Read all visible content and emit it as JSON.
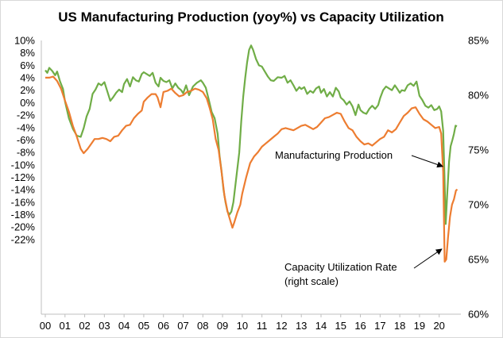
{
  "chart_data": {
    "type": "line",
    "title": "US Manufacturing Production (yoy%) vs Capacity Utilization",
    "x_ticks": [
      "00",
      "01",
      "02",
      "03",
      "04",
      "05",
      "06",
      "07",
      "08",
      "09",
      "10",
      "11",
      "12",
      "13",
      "14",
      "15",
      "16",
      "17",
      "18",
      "19",
      "20"
    ],
    "x_range": [
      2000.0,
      2020.9
    ],
    "left_axis": {
      "ticks": [
        "10%",
        "8%",
        "6%",
        "4%",
        "2%",
        "0%",
        "-2%",
        "-4%",
        "-6%",
        "-8%",
        "-10%",
        "-12%",
        "-14%",
        "-16%",
        "-18%",
        "-20%",
        "-22%"
      ],
      "range": [
        -34,
        10
      ]
    },
    "right_axis": {
      "ticks": [
        "85%",
        "80%",
        "75%",
        "70%",
        "65%",
        "60%"
      ],
      "range": [
        60,
        85
      ]
    },
    "grid": false,
    "series": [
      {
        "name": "Manufacturing Production",
        "axis": "left",
        "color": "#70ad47",
        "points": [
          [
            2000.0,
            5.2
          ],
          [
            2000.1,
            4.8
          ],
          [
            2000.2,
            5.6
          ],
          [
            2000.35,
            5.1
          ],
          [
            2000.5,
            4.4
          ],
          [
            2000.6,
            5.0
          ],
          [
            2000.75,
            3.4
          ],
          [
            2000.9,
            2.2
          ],
          [
            2001.0,
            0.2
          ],
          [
            2001.2,
            -2.5
          ],
          [
            2001.4,
            -4.2
          ],
          [
            2001.6,
            -5.3
          ],
          [
            2001.8,
            -5.5
          ],
          [
            2001.95,
            -4.1
          ],
          [
            2002.1,
            -2.2
          ],
          [
            2002.25,
            -1.0
          ],
          [
            2002.4,
            1.4
          ],
          [
            2002.55,
            2.1
          ],
          [
            2002.7,
            3.1
          ],
          [
            2002.85,
            2.8
          ],
          [
            2003.0,
            3.3
          ],
          [
            2003.15,
            1.8
          ],
          [
            2003.3,
            0.3
          ],
          [
            2003.45,
            0.9
          ],
          [
            2003.6,
            1.6
          ],
          [
            2003.75,
            2.1
          ],
          [
            2003.9,
            1.7
          ],
          [
            2004.0,
            3.0
          ],
          [
            2004.15,
            3.8
          ],
          [
            2004.3,
            2.6
          ],
          [
            2004.45,
            4.1
          ],
          [
            2004.6,
            3.6
          ],
          [
            2004.75,
            3.4
          ],
          [
            2004.9,
            4.6
          ],
          [
            2005.0,
            4.9
          ],
          [
            2005.15,
            4.6
          ],
          [
            2005.3,
            4.3
          ],
          [
            2005.45,
            4.8
          ],
          [
            2005.6,
            3.2
          ],
          [
            2005.75,
            2.6
          ],
          [
            2005.85,
            4.0
          ],
          [
            2006.0,
            3.5
          ],
          [
            2006.15,
            3.3
          ],
          [
            2006.3,
            3.6
          ],
          [
            2006.45,
            2.3
          ],
          [
            2006.6,
            3.1
          ],
          [
            2006.75,
            2.4
          ],
          [
            2006.9,
            2.0
          ],
          [
            2007.0,
            1.5
          ],
          [
            2007.15,
            2.8
          ],
          [
            2007.3,
            1.2
          ],
          [
            2007.5,
            2.6
          ],
          [
            2007.7,
            3.2
          ],
          [
            2007.9,
            3.6
          ],
          [
            2008.0,
            3.2
          ],
          [
            2008.15,
            2.4
          ],
          [
            2008.3,
            0.5
          ],
          [
            2008.45,
            -1.5
          ],
          [
            2008.6,
            -2.5
          ],
          [
            2008.75,
            -5.0
          ],
          [
            2008.85,
            -8.5
          ],
          [
            2008.95,
            -11.0
          ],
          [
            2009.05,
            -14.0
          ],
          [
            2009.15,
            -16.0
          ],
          [
            2009.25,
            -17.5
          ],
          [
            2009.35,
            -18.0
          ],
          [
            2009.45,
            -17.5
          ],
          [
            2009.55,
            -16.0
          ],
          [
            2009.7,
            -12.0
          ],
          [
            2009.85,
            -8.0
          ],
          [
            2009.95,
            -3.0
          ],
          [
            2010.05,
            1.0
          ],
          [
            2010.15,
            4.0
          ],
          [
            2010.25,
            6.5
          ],
          [
            2010.35,
            8.5
          ],
          [
            2010.45,
            9.2
          ],
          [
            2010.55,
            8.5
          ],
          [
            2010.7,
            7.0
          ],
          [
            2010.85,
            6.0
          ],
          [
            2011.0,
            5.8
          ],
          [
            2011.15,
            5.0
          ],
          [
            2011.3,
            4.2
          ],
          [
            2011.45,
            3.6
          ],
          [
            2011.6,
            3.5
          ],
          [
            2011.8,
            4.1
          ],
          [
            2012.0,
            4.0
          ],
          [
            2012.15,
            4.3
          ],
          [
            2012.3,
            3.2
          ],
          [
            2012.45,
            3.6
          ],
          [
            2012.6,
            2.8
          ],
          [
            2012.75,
            1.9
          ],
          [
            2012.9,
            2.5
          ],
          [
            2013.0,
            2.2
          ],
          [
            2013.15,
            2.5
          ],
          [
            2013.3,
            1.4
          ],
          [
            2013.45,
            1.9
          ],
          [
            2013.6,
            1.6
          ],
          [
            2013.75,
            2.3
          ],
          [
            2013.9,
            2.6
          ],
          [
            2014.0,
            1.6
          ],
          [
            2014.15,
            2.2
          ],
          [
            2014.3,
            1.0
          ],
          [
            2014.45,
            1.7
          ],
          [
            2014.6,
            1.0
          ],
          [
            2014.75,
            2.4
          ],
          [
            2014.9,
            1.8
          ],
          [
            2015.0,
            0.8
          ],
          [
            2015.15,
            0.4
          ],
          [
            2015.3,
            -0.3
          ],
          [
            2015.45,
            0.2
          ],
          [
            2015.6,
            -0.6
          ],
          [
            2015.75,
            -2.0
          ],
          [
            2015.9,
            -0.3
          ],
          [
            2016.0,
            -1.2
          ],
          [
            2016.15,
            -1.6
          ],
          [
            2016.3,
            -1.8
          ],
          [
            2016.45,
            -1.0
          ],
          [
            2016.6,
            -0.5
          ],
          [
            2016.75,
            -1.0
          ],
          [
            2016.9,
            -0.4
          ],
          [
            2017.0,
            0.7
          ],
          [
            2017.15,
            2.0
          ],
          [
            2017.3,
            2.6
          ],
          [
            2017.45,
            2.3
          ],
          [
            2017.6,
            2.0
          ],
          [
            2017.75,
            2.8
          ],
          [
            2017.9,
            2.1
          ],
          [
            2018.0,
            1.6
          ],
          [
            2018.1,
            2.0
          ],
          [
            2018.25,
            1.9
          ],
          [
            2018.4,
            2.8
          ],
          [
            2018.55,
            3.1
          ],
          [
            2018.7,
            2.7
          ],
          [
            2018.85,
            3.4
          ],
          [
            2019.0,
            1.1
          ],
          [
            2019.15,
            0.4
          ],
          [
            2019.3,
            -0.5
          ],
          [
            2019.45,
            -0.8
          ],
          [
            2019.6,
            -0.4
          ],
          [
            2019.75,
            -1.2
          ],
          [
            2019.9,
            -1.0
          ],
          [
            2020.0,
            -0.6
          ],
          [
            2020.1,
            -1.4
          ],
          [
            2020.2,
            -4.5
          ],
          [
            2020.27,
            -12.0
          ],
          [
            2020.33,
            -19.5
          ],
          [
            2020.42,
            -14.0
          ],
          [
            2020.5,
            -9.5
          ],
          [
            2020.58,
            -7.0
          ],
          [
            2020.67,
            -6.0
          ],
          [
            2020.75,
            -5.0
          ],
          [
            2020.83,
            -3.7
          ],
          [
            2020.9,
            -3.8
          ]
        ]
      },
      {
        "name": "Capacity Utilization Rate",
        "axis": "right",
        "color": "#ed7d31",
        "points": [
          [
            2000.0,
            81.6
          ],
          [
            2000.2,
            81.6
          ],
          [
            2000.4,
            81.7
          ],
          [
            2000.6,
            81.3
          ],
          [
            2000.8,
            80.6
          ],
          [
            2001.0,
            79.5
          ],
          [
            2001.2,
            78.5
          ],
          [
            2001.4,
            77.2
          ],
          [
            2001.6,
            76.2
          ],
          [
            2001.8,
            75.1
          ],
          [
            2001.95,
            74.7
          ],
          [
            2002.15,
            75.1
          ],
          [
            2002.35,
            75.6
          ],
          [
            2002.5,
            76.0
          ],
          [
            2002.7,
            76.0
          ],
          [
            2002.9,
            76.1
          ],
          [
            2003.1,
            76.0
          ],
          [
            2003.3,
            75.8
          ],
          [
            2003.5,
            76.2
          ],
          [
            2003.7,
            76.3
          ],
          [
            2003.9,
            76.8
          ],
          [
            2004.1,
            77.2
          ],
          [
            2004.3,
            77.3
          ],
          [
            2004.5,
            77.9
          ],
          [
            2004.7,
            78.3
          ],
          [
            2004.9,
            78.6
          ],
          [
            2005.0,
            79.4
          ],
          [
            2005.2,
            79.8
          ],
          [
            2005.4,
            80.1
          ],
          [
            2005.6,
            80.1
          ],
          [
            2005.7,
            79.8
          ],
          [
            2005.85,
            78.9
          ],
          [
            2006.0,
            80.3
          ],
          [
            2006.2,
            80.4
          ],
          [
            2006.4,
            80.6
          ],
          [
            2006.6,
            80.2
          ],
          [
            2006.8,
            79.9
          ],
          [
            2007.0,
            80.0
          ],
          [
            2007.2,
            80.3
          ],
          [
            2007.4,
            80.4
          ],
          [
            2007.6,
            80.6
          ],
          [
            2007.8,
            80.5
          ],
          [
            2008.0,
            80.3
          ],
          [
            2008.2,
            79.7
          ],
          [
            2008.35,
            78.8
          ],
          [
            2008.5,
            77.8
          ],
          [
            2008.65,
            76.0
          ],
          [
            2008.8,
            75.0
          ],
          [
            2008.95,
            73.0
          ],
          [
            2009.1,
            70.8
          ],
          [
            2009.25,
            69.4
          ],
          [
            2009.4,
            68.5
          ],
          [
            2009.5,
            67.9
          ],
          [
            2009.6,
            68.4
          ],
          [
            2009.75,
            69.3
          ],
          [
            2009.9,
            70.0
          ],
          [
            2010.0,
            71.0
          ],
          [
            2010.2,
            72.5
          ],
          [
            2010.4,
            73.8
          ],
          [
            2010.6,
            74.4
          ],
          [
            2010.8,
            74.8
          ],
          [
            2011.0,
            75.3
          ],
          [
            2011.2,
            75.6
          ],
          [
            2011.4,
            75.9
          ],
          [
            2011.6,
            76.2
          ],
          [
            2011.8,
            76.5
          ],
          [
            2012.0,
            76.9
          ],
          [
            2012.2,
            77.0
          ],
          [
            2012.4,
            76.9
          ],
          [
            2012.6,
            76.8
          ],
          [
            2012.8,
            77.0
          ],
          [
            2013.0,
            77.2
          ],
          [
            2013.2,
            77.3
          ],
          [
            2013.4,
            77.1
          ],
          [
            2013.6,
            76.9
          ],
          [
            2013.8,
            77.1
          ],
          [
            2014.0,
            77.5
          ],
          [
            2014.2,
            77.9
          ],
          [
            2014.4,
            78.0
          ],
          [
            2014.6,
            78.2
          ],
          [
            2014.8,
            78.4
          ],
          [
            2015.0,
            78.3
          ],
          [
            2015.2,
            77.6
          ],
          [
            2015.4,
            77.0
          ],
          [
            2015.6,
            76.8
          ],
          [
            2015.8,
            76.2
          ],
          [
            2016.0,
            75.8
          ],
          [
            2016.2,
            75.5
          ],
          [
            2016.4,
            75.6
          ],
          [
            2016.6,
            75.4
          ],
          [
            2016.8,
            75.7
          ],
          [
            2017.0,
            76.0
          ],
          [
            2017.2,
            76.2
          ],
          [
            2017.4,
            76.8
          ],
          [
            2017.6,
            76.6
          ],
          [
            2017.8,
            76.9
          ],
          [
            2018.0,
            77.5
          ],
          [
            2018.2,
            78.1
          ],
          [
            2018.4,
            78.4
          ],
          [
            2018.6,
            78.8
          ],
          [
            2018.8,
            78.9
          ],
          [
            2019.0,
            78.3
          ],
          [
            2019.2,
            77.8
          ],
          [
            2019.4,
            77.6
          ],
          [
            2019.6,
            77.3
          ],
          [
            2019.8,
            77.0
          ],
          [
            2020.0,
            77.1
          ],
          [
            2020.1,
            76.5
          ],
          [
            2020.2,
            73.0
          ],
          [
            2020.28,
            64.8
          ],
          [
            2020.36,
            65.0
          ],
          [
            2020.45,
            67.0
          ],
          [
            2020.55,
            68.9
          ],
          [
            2020.65,
            70.0
          ],
          [
            2020.75,
            70.5
          ],
          [
            2020.85,
            71.3
          ],
          [
            2020.92,
            71.4
          ]
        ]
      }
    ],
    "annotations": [
      {
        "name": "annotation-manufacturing",
        "text": "Manufacturing  Production",
        "arrow_to": [
          2020.3,
          -10.5
        ]
      },
      {
        "name": "annotation-capacity",
        "lines": [
          "Capacity Utilization Rate",
          "(right scale)"
        ],
        "arrow_to": [
          2020.25,
          65.8
        ]
      }
    ]
  }
}
